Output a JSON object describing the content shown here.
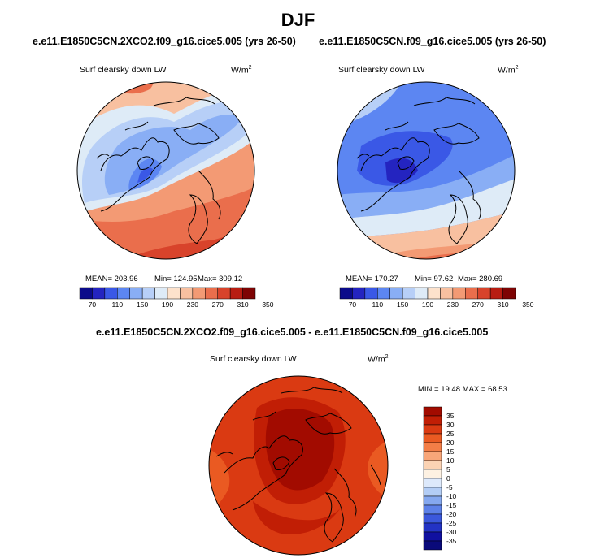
{
  "season": "DJF",
  "colorbar_colors": [
    "#0b0b8a",
    "#2424c0",
    "#3a58e6",
    "#5c86f2",
    "#89aef5",
    "#b7cff7",
    "#deebf7",
    "#fde2cc",
    "#f8c0a0",
    "#f39a74",
    "#ea6e4c",
    "#d8432b",
    "#b81d12",
    "#7e0404"
  ],
  "panel_a": {
    "title": "e.e11.E1850C5CN.2XCO2.f09_g16.cice5.005 (yrs 26-50)",
    "variable": "Surf clearsky down LW",
    "units": "W/m",
    "units_sup": "2",
    "mean_text": "MEAN= 203.96",
    "min_text": "Min= 124.95",
    "max_text": "Max= 309.12",
    "colorbar_ticks": [
      "70",
      "110",
      "150",
      "190",
      "230",
      "270",
      "310",
      "350"
    ]
  },
  "panel_b": {
    "title": "e.e11.E1850C5CN.f09_g16.cice5.005 (yrs 26-50)",
    "variable": "Surf clearsky down LW",
    "units": "W/m",
    "units_sup": "2",
    "mean_text": "MEAN= 170.27",
    "min_text": "Min=  97.62",
    "max_text": "Max= 280.69",
    "colorbar_ticks": [
      "70",
      "110",
      "150",
      "190",
      "230",
      "270",
      "310",
      "350"
    ]
  },
  "panel_diff": {
    "title": "e.e11.E1850C5CN.2XCO2.f09_g16.cice5.005 - e.e11.E1850C5CN.f09_g16.cice5.005",
    "variable": "Surf clearsky down LW",
    "units": "W/m",
    "units_sup": "2",
    "minmax_text": "MIN = 19.48 MAX =  68.53",
    "colorbar_ticks": [
      "35",
      "30",
      "25",
      "20",
      "15",
      "10",
      "5",
      "0",
      "-5",
      "-10",
      "-15",
      "-20",
      "-25",
      "-30",
      "-35"
    ],
    "colorbar_colors": [
      "#a20b00",
      "#c11e05",
      "#da3a12",
      "#ea5a22",
      "#f37e47",
      "#f8a679",
      "#fbd3b4",
      "#fdf1e2",
      "#dde9fb",
      "#b3cdf5",
      "#85a8ef",
      "#5d81e8",
      "#3b58dc",
      "#2333c4",
      "#1010a0",
      "#0a0a7a"
    ]
  }
}
